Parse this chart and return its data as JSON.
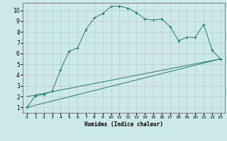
{
  "xlabel": "Humidex (Indice chaleur)",
  "bg_color": "#cce8e8",
  "grid_color": "#bbbbbb",
  "line_color": "#2d7a6e",
  "xlim": [
    -0.5,
    23.5
  ],
  "ylim": [
    0.5,
    10.7
  ],
  "x_ticks": [
    0,
    1,
    2,
    3,
    4,
    5,
    6,
    7,
    8,
    9,
    10,
    11,
    12,
    13,
    14,
    15,
    16,
    17,
    18,
    19,
    20,
    21,
    22,
    23
  ],
  "y_ticks": [
    1,
    2,
    3,
    4,
    5,
    6,
    7,
    8,
    9,
    10
  ],
  "series1_x": [
    0,
    1,
    2,
    3,
    4,
    5,
    6,
    7,
    8,
    9,
    10,
    11,
    12,
    13,
    14,
    15,
    16,
    17,
    18,
    19,
    20,
    21,
    22,
    23
  ],
  "series1_y": [
    1.0,
    2.1,
    2.2,
    2.5,
    4.5,
    6.2,
    6.5,
    8.2,
    9.3,
    9.7,
    10.35,
    10.4,
    10.2,
    9.8,
    9.2,
    9.1,
    9.2,
    8.5,
    7.2,
    7.5,
    7.5,
    8.7,
    6.3,
    5.5
  ],
  "series2_x": [
    0,
    23
  ],
  "series2_y": [
    1.0,
    5.5
  ],
  "series3_x": [
    0,
    23
  ],
  "series3_y": [
    2.0,
    5.5
  ]
}
